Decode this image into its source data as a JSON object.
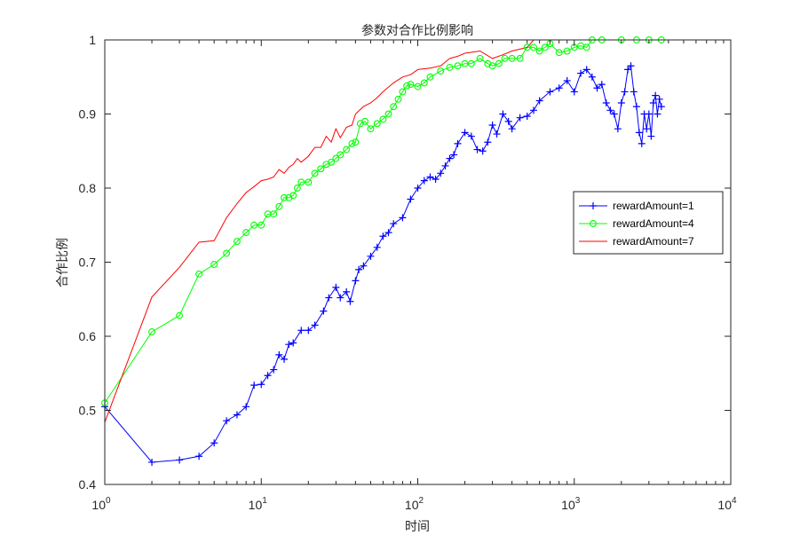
{
  "chart_data": {
    "type": "line",
    "title": "参数对合作比例影响",
    "xlabel": "时间",
    "ylabel": "合作比例",
    "xscale": "log",
    "xlim": [
      1,
      10000
    ],
    "ylim": [
      0.4,
      1.0
    ],
    "xticks": [
      {
        "value": 1,
        "base": "10",
        "exp": "0"
      },
      {
        "value": 10,
        "base": "10",
        "exp": "1"
      },
      {
        "value": 100,
        "base": "10",
        "exp": "2"
      },
      {
        "value": 1000,
        "base": "10",
        "exp": "3"
      },
      {
        "value": 10000,
        "base": "10",
        "exp": "4"
      }
    ],
    "yticks": [
      {
        "value": 0.4,
        "label": "0.4"
      },
      {
        "value": 0.5,
        "label": "0.5"
      },
      {
        "value": 0.6,
        "label": "0.6"
      },
      {
        "value": 0.7,
        "label": "0.7"
      },
      {
        "value": 0.8,
        "label": "0.8"
      },
      {
        "value": 0.9,
        "label": "0.9"
      },
      {
        "value": 1.0,
        "label": "1"
      }
    ],
    "grid": false,
    "legend_position": "right",
    "series": [
      {
        "name": "rewardAmount=1",
        "color": "#0000ff",
        "marker": "plus",
        "points": [
          [
            1,
            0.505
          ],
          [
            2,
            0.43
          ],
          [
            3,
            0.433
          ],
          [
            4,
            0.438
          ],
          [
            5,
            0.456
          ],
          [
            6,
            0.486
          ],
          [
            7,
            0.494
          ],
          [
            8,
            0.505
          ],
          [
            9,
            0.534
          ],
          [
            10,
            0.535
          ],
          [
            11,
            0.547
          ],
          [
            12,
            0.555
          ],
          [
            13,
            0.575
          ],
          [
            14,
            0.569
          ],
          [
            15,
            0.589
          ],
          [
            16,
            0.591
          ],
          [
            18,
            0.608
          ],
          [
            20,
            0.608
          ],
          [
            22,
            0.615
          ],
          [
            25,
            0.634
          ],
          [
            27,
            0.652
          ],
          [
            30,
            0.666
          ],
          [
            32,
            0.652
          ],
          [
            35,
            0.66
          ],
          [
            37,
            0.647
          ],
          [
            40,
            0.675
          ],
          [
            42,
            0.69
          ],
          [
            45,
            0.695
          ],
          [
            50,
            0.708
          ],
          [
            55,
            0.72
          ],
          [
            60,
            0.735
          ],
          [
            65,
            0.74
          ],
          [
            70,
            0.752
          ],
          [
            80,
            0.76
          ],
          [
            90,
            0.785
          ],
          [
            100,
            0.8
          ],
          [
            110,
            0.81
          ],
          [
            120,
            0.815
          ],
          [
            130,
            0.812
          ],
          [
            140,
            0.82
          ],
          [
            150,
            0.83
          ],
          [
            160,
            0.84
          ],
          [
            170,
            0.845
          ],
          [
            180,
            0.86
          ],
          [
            200,
            0.875
          ],
          [
            220,
            0.87
          ],
          [
            240,
            0.852
          ],
          [
            260,
            0.85
          ],
          [
            280,
            0.862
          ],
          [
            300,
            0.885
          ],
          [
            320,
            0.873
          ],
          [
            350,
            0.9
          ],
          [
            380,
            0.89
          ],
          [
            400,
            0.88
          ],
          [
            450,
            0.895
          ],
          [
            500,
            0.897
          ],
          [
            550,
            0.905
          ],
          [
            600,
            0.918
          ],
          [
            700,
            0.93
          ],
          [
            800,
            0.935
          ],
          [
            900,
            0.945
          ],
          [
            1000,
            0.93
          ],
          [
            1100,
            0.955
          ],
          [
            1200,
            0.96
          ],
          [
            1300,
            0.95
          ],
          [
            1400,
            0.935
          ],
          [
            1500,
            0.94
          ],
          [
            1600,
            0.915
          ],
          [
            1700,
            0.905
          ],
          [
            1800,
            0.9
          ],
          [
            1900,
            0.88
          ],
          [
            2000,
            0.915
          ],
          [
            2100,
            0.93
          ],
          [
            2200,
            0.96
          ],
          [
            2300,
            0.965
          ],
          [
            2400,
            0.93
          ],
          [
            2500,
            0.91
          ],
          [
            2600,
            0.875
          ],
          [
            2700,
            0.86
          ],
          [
            2800,
            0.9
          ],
          [
            2900,
            0.88
          ],
          [
            3000,
            0.9
          ],
          [
            3100,
            0.87
          ],
          [
            3200,
            0.915
          ],
          [
            3300,
            0.925
          ],
          [
            3400,
            0.9
          ],
          [
            3500,
            0.92
          ],
          [
            3600,
            0.91
          ]
        ]
      },
      {
        "name": "rewardAmount=4",
        "color": "#00ff00",
        "marker": "circle",
        "points": [
          [
            1,
            0.51
          ],
          [
            2,
            0.606
          ],
          [
            3,
            0.628
          ],
          [
            4,
            0.684
          ],
          [
            5,
            0.697
          ],
          [
            6,
            0.712
          ],
          [
            7,
            0.728
          ],
          [
            8,
            0.74
          ],
          [
            9,
            0.75
          ],
          [
            10,
            0.75
          ],
          [
            11,
            0.765
          ],
          [
            12,
            0.765
          ],
          [
            13,
            0.775
          ],
          [
            14,
            0.787
          ],
          [
            15,
            0.787
          ],
          [
            16,
            0.79
          ],
          [
            17,
            0.8
          ],
          [
            18,
            0.808
          ],
          [
            20,
            0.808
          ],
          [
            22,
            0.82
          ],
          [
            24,
            0.826
          ],
          [
            26,
            0.832
          ],
          [
            28,
            0.835
          ],
          [
            30,
            0.84
          ],
          [
            32,
            0.845
          ],
          [
            35,
            0.852
          ],
          [
            38,
            0.86
          ],
          [
            40,
            0.862
          ],
          [
            43,
            0.887
          ],
          [
            46,
            0.89
          ],
          [
            50,
            0.88
          ],
          [
            55,
            0.887
          ],
          [
            60,
            0.893
          ],
          [
            65,
            0.9
          ],
          [
            70,
            0.91
          ],
          [
            75,
            0.92
          ],
          [
            80,
            0.93
          ],
          [
            85,
            0.938
          ],
          [
            90,
            0.94
          ],
          [
            100,
            0.937
          ],
          [
            110,
            0.942
          ],
          [
            120,
            0.95
          ],
          [
            140,
            0.958
          ],
          [
            160,
            0.963
          ],
          [
            180,
            0.965
          ],
          [
            200,
            0.968
          ],
          [
            220,
            0.968
          ],
          [
            250,
            0.975
          ],
          [
            280,
            0.968
          ],
          [
            300,
            0.965
          ],
          [
            330,
            0.968
          ],
          [
            360,
            0.975
          ],
          [
            400,
            0.975
          ],
          [
            450,
            0.975
          ],
          [
            500,
            0.99
          ],
          [
            550,
            0.99
          ],
          [
            600,
            0.985
          ],
          [
            650,
            0.99
          ],
          [
            700,
            0.995
          ],
          [
            800,
            0.983
          ],
          [
            900,
            0.985
          ],
          [
            1000,
            0.99
          ],
          [
            1100,
            0.992
          ],
          [
            1200,
            0.99
          ],
          [
            1300,
            1.0
          ],
          [
            1500,
            1.0
          ],
          [
            2000,
            1.0
          ],
          [
            2500,
            1.0
          ],
          [
            3000,
            1.0
          ],
          [
            3600,
            1.0
          ]
        ]
      },
      {
        "name": "rewardAmount=7",
        "color": "#ff0000",
        "marker": "none",
        "points": [
          [
            1,
            0.484
          ],
          [
            2,
            0.653
          ],
          [
            3,
            0.693
          ],
          [
            4,
            0.727
          ],
          [
            5,
            0.729
          ],
          [
            6,
            0.76
          ],
          [
            7,
            0.779
          ],
          [
            8,
            0.794
          ],
          [
            9,
            0.802
          ],
          [
            10,
            0.81
          ],
          [
            11,
            0.812
          ],
          [
            12,
            0.815
          ],
          [
            13,
            0.825
          ],
          [
            14,
            0.82
          ],
          [
            15,
            0.828
          ],
          [
            16,
            0.832
          ],
          [
            17,
            0.84
          ],
          [
            18,
            0.835
          ],
          [
            20,
            0.843
          ],
          [
            22,
            0.855
          ],
          [
            24,
            0.855
          ],
          [
            26,
            0.87
          ],
          [
            28,
            0.862
          ],
          [
            30,
            0.88
          ],
          [
            32,
            0.868
          ],
          [
            35,
            0.882
          ],
          [
            38,
            0.885
          ],
          [
            40,
            0.9
          ],
          [
            45,
            0.91
          ],
          [
            50,
            0.915
          ],
          [
            55,
            0.922
          ],
          [
            60,
            0.93
          ],
          [
            70,
            0.942
          ],
          [
            80,
            0.95
          ],
          [
            90,
            0.953
          ],
          [
            100,
            0.96
          ],
          [
            120,
            0.962
          ],
          [
            140,
            0.965
          ],
          [
            160,
            0.975
          ],
          [
            180,
            0.978
          ],
          [
            200,
            0.982
          ],
          [
            250,
            0.985
          ],
          [
            300,
            0.975
          ],
          [
            350,
            0.98
          ],
          [
            400,
            0.985
          ],
          [
            500,
            0.99
          ],
          [
            550,
            1.0
          ],
          [
            600,
            1.0
          ],
          [
            800,
            1.0
          ],
          [
            1000,
            1.0
          ],
          [
            1500,
            1.0
          ],
          [
            2000,
            1.0
          ],
          [
            3000,
            1.0
          ],
          [
            3600,
            1.0
          ]
        ]
      }
    ]
  }
}
